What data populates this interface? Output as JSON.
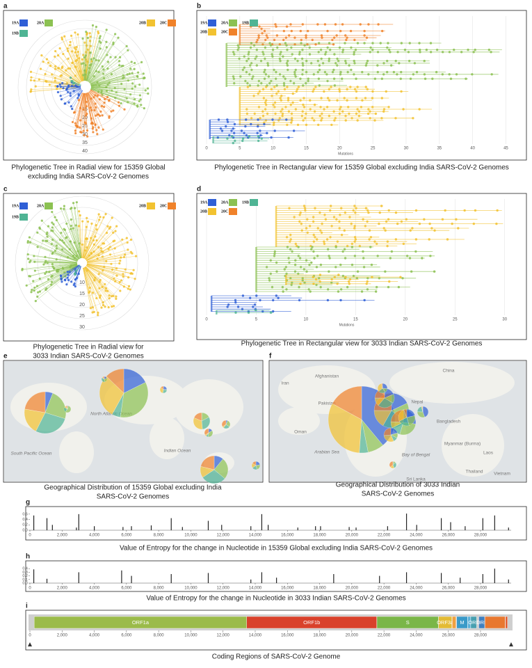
{
  "panels": [
    {
      "label": "a",
      "type": "radial-tree",
      "caption": [
        "Phylogenetic Tree in Radial view for 15359 Global",
        "excluding India SARS-CoV-2 Genomes"
      ],
      "rings": [
        15,
        20,
        25,
        30,
        35,
        40
      ],
      "legend": [
        {
          "name": "19A",
          "color": "#2f5fd6"
        },
        {
          "name": "20A",
          "color": "#8cc152"
        },
        {
          "name": "19B",
          "color": "#4fb494"
        },
        {
          "name": "20B",
          "color": "#f2c230"
        },
        {
          "name": "20C",
          "color": "#f0822a"
        }
      ]
    },
    {
      "label": "b",
      "type": "rect-tree",
      "caption": [
        "Phylogenetic Tree in Rectangular view for 15359 Global excluding India SARS-CoV-2 Genomes"
      ],
      "xlim": [
        0,
        46
      ],
      "xticks": [
        0,
        5,
        10,
        15,
        20,
        25,
        30,
        35,
        40,
        45
      ],
      "xlabel": "Mutations",
      "legend": [
        {
          "name": "19A",
          "color": "#2f5fd6"
        },
        {
          "name": "20A",
          "color": "#8cc152"
        },
        {
          "name": "19B",
          "color": "#4fb494"
        },
        {
          "name": "20B",
          "color": "#f2c230"
        },
        {
          "name": "20C",
          "color": "#f0822a"
        }
      ]
    },
    {
      "label": "c",
      "type": "radial-tree",
      "caption": [
        "Phylogenetic Tree in Radial view for",
        "3033 Indian SARS-CoV-2 Genomes"
      ],
      "rings": [
        10,
        15,
        20,
        25,
        30
      ],
      "legend": [
        {
          "name": "19A",
          "color": "#2f5fd6"
        },
        {
          "name": "20A",
          "color": "#8cc152"
        },
        {
          "name": "19B",
          "color": "#4fb494"
        },
        {
          "name": "20B",
          "color": "#f2c230"
        },
        {
          "name": "20C",
          "color": "#f0822a"
        }
      ]
    },
    {
      "label": "d",
      "type": "rect-tree",
      "caption": [
        "Phylogenetic Tree in Rectangular view for 3033 Indian SARS-CoV-2 Genomes"
      ],
      "xlim": [
        0,
        31
      ],
      "xticks": [
        0,
        5,
        10,
        15,
        20,
        25,
        30
      ],
      "xlabel": "Mutations",
      "legend": [
        {
          "name": "19A",
          "color": "#2f5fd6"
        },
        {
          "name": "20A",
          "color": "#8cc152"
        },
        {
          "name": "19B",
          "color": "#4fb494"
        },
        {
          "name": "20B",
          "color": "#f2c230"
        },
        {
          "name": "20C",
          "color": "#f0822a"
        }
      ]
    },
    {
      "label": "e",
      "type": "map",
      "caption": [
        "Geographical Distribution of 15359 Global excluding India",
        "SARS-CoV-2 Genomes"
      ],
      "places": [
        "North Atlantic Ocean",
        "Indian Ocean",
        "South Pacific Ocean"
      ]
    },
    {
      "label": "f",
      "type": "map",
      "caption": [
        "Geographical Distribution of 3033 Indian",
        "SARS-CoV-2 Genomes"
      ],
      "places": [
        "Afghanistan",
        "China",
        "Iran",
        "Pakistan",
        "Nepal",
        "Bangladesh",
        "Oman",
        "Myanmar (Burma)",
        "Laos",
        "Arabian Sea",
        "Bay of Bengal",
        "Thailand",
        "Vietnam",
        "Sri Lanka"
      ]
    },
    {
      "label": "g",
      "type": "entropy",
      "caption": [
        "Value of Entropy for the change in Nucleotide in 15359 Global excluding India SARS-CoV-2 Genomes"
      ],
      "color": "#222222",
      "xlim": [
        0,
        29903
      ],
      "ylim": [
        0,
        0.7
      ],
      "xticks": [
        0,
        {
          "value": 2000,
          "label": "2,000"
        },
        {
          "value": 4000,
          "label": "4,000"
        },
        {
          "value": 6000,
          "label": "6,000"
        },
        {
          "value": 8000,
          "label": "8,000"
        },
        {
          "value": 10000,
          "label": "10,000"
        },
        {
          "value": 12000,
          "label": "12,000"
        },
        {
          "value": 14000,
          "label": "14,000"
        },
        {
          "value": 16000,
          "label": "16,000"
        },
        {
          "value": 18000,
          "label": "18,000"
        },
        {
          "value": 20000,
          "label": "20,000"
        },
        {
          "value": 22000,
          "label": "22,000"
        },
        {
          "value": 24000,
          "label": "24,000"
        },
        {
          "value": 26000,
          "label": "26,000"
        },
        {
          "value": 28000,
          "label": "28,000"
        }
      ],
      "yticks": [
        {
          "value": 0,
          "label": "0.0"
        },
        0.2,
        0.4,
        0.6
      ],
      "x": [
        241,
        1059,
        1397,
        2891,
        3037,
        4002,
        5784,
        6310,
        7540,
        8782,
        9477,
        11083,
        11916,
        13730,
        14408,
        14805,
        16647,
        17747,
        18060,
        19839,
        20268,
        22227,
        23403,
        24034,
        25563,
        26144,
        27046,
        28144,
        28881,
        29742
      ],
      "values": [
        0.55,
        0.45,
        0.2,
        0.1,
        0.6,
        0.15,
        0.12,
        0.15,
        0.18,
        0.45,
        0.12,
        0.35,
        0.2,
        0.15,
        0.6,
        0.2,
        0.1,
        0.15,
        0.15,
        0.12,
        0.1,
        0.15,
        0.62,
        0.2,
        0.45,
        0.3,
        0.15,
        0.45,
        0.55,
        0.1
      ]
    },
    {
      "label": "h",
      "type": "entropy",
      "caption": [
        "Value of Entropy for the change in Nucleotide in 3033 Indian SARS-CoV-2 Genomes"
      ],
      "color": "#222222",
      "xlim": [
        0,
        29903
      ],
      "ylim": [
        0,
        0.5
      ],
      "xticks": [
        0,
        {
          "value": 2000,
          "label": "2,000"
        },
        {
          "value": 4000,
          "label": "4,000"
        },
        {
          "value": 6000,
          "label": "6,000"
        },
        {
          "value": 8000,
          "label": "8,000"
        },
        {
          "value": 10000,
          "label": "10,000"
        },
        {
          "value": 12000,
          "label": "12,000"
        },
        {
          "value": 14000,
          "label": "14,000"
        },
        {
          "value": 16000,
          "label": "16,000"
        },
        {
          "value": 18000,
          "label": "18,000"
        },
        {
          "value": 20000,
          "label": "20,000"
        },
        {
          "value": 22000,
          "label": "22,000"
        },
        {
          "value": 24000,
          "label": "24,000"
        },
        {
          "value": 26000,
          "label": "26,000"
        },
        {
          "value": 28000,
          "label": "28,000"
        }
      ],
      "yticks": [
        {
          "value": 0,
          "label": "0.0"
        },
        0.1,
        0.2,
        0.3,
        0.4
      ],
      "x": [
        241,
        1059,
        3037,
        5700,
        6312,
        8782,
        11083,
        13730,
        14408,
        15324,
        18877,
        21724,
        23403,
        25563,
        26735,
        28144,
        28881,
        29742
      ],
      "values": [
        0.38,
        0.12,
        0.3,
        0.35,
        0.2,
        0.25,
        0.28,
        0.1,
        0.3,
        0.15,
        0.25,
        0.2,
        0.3,
        0.28,
        0.15,
        0.25,
        0.4,
        0.1
      ]
    },
    {
      "label": "i",
      "type": "genome",
      "caption": [
        "Coding Regions of SARS-CoV-2 Genome"
      ],
      "xlim": [
        0,
        29903
      ],
      "xticks": [
        0,
        {
          "value": 2000,
          "label": "2,000"
        },
        {
          "value": 4000,
          "label": "4,000"
        },
        {
          "value": 6000,
          "label": "6,000"
        },
        {
          "value": 8000,
          "label": "8,000"
        },
        {
          "value": 10000,
          "label": "10,000"
        },
        {
          "value": 12000,
          "label": "12,000"
        },
        {
          "value": 14000,
          "label": "14,000"
        },
        {
          "value": 16000,
          "label": "16,000"
        },
        {
          "value": 18000,
          "label": "18,000"
        },
        {
          "value": 20000,
          "label": "20,000"
        },
        {
          "value": 22000,
          "label": "22,000"
        },
        {
          "value": 24000,
          "label": "24,000"
        },
        {
          "value": 26000,
          "label": "26,000"
        },
        {
          "value": 28000,
          "label": "28,000"
        }
      ],
      "regions": [
        {
          "label": "ORF1a",
          "start": 266,
          "end": 13468,
          "color": "#9bbb4a"
        },
        {
          "label": "ORF1b",
          "start": 13468,
          "end": 21555,
          "color": "#d9412b"
        },
        {
          "label": "S",
          "start": 21563,
          "end": 25384,
          "color": "#7ab648"
        },
        {
          "label": "ORF3a",
          "start": 25393,
          "end": 26220,
          "color": "#e3bb35"
        },
        {
          "start": 26245,
          "end": 26472,
          "color": "#f0a040"
        },
        {
          "label": "M",
          "start": 26523,
          "end": 27191,
          "color": "#3a9ac8"
        },
        {
          "start": 27202,
          "end": 27387,
          "color": "#5ab0d8"
        },
        {
          "label": "ORF",
          "start": 27394,
          "end": 27759,
          "color": "#48a0b0"
        },
        {
          "label": "ORF",
          "start": 27894,
          "end": 28259,
          "color": "#4080c0"
        },
        {
          "start": 28274,
          "end": 29533,
          "color": "#e87830"
        },
        {
          "start": 29558,
          "end": 29674,
          "color": "#e05020"
        }
      ]
    }
  ]
}
